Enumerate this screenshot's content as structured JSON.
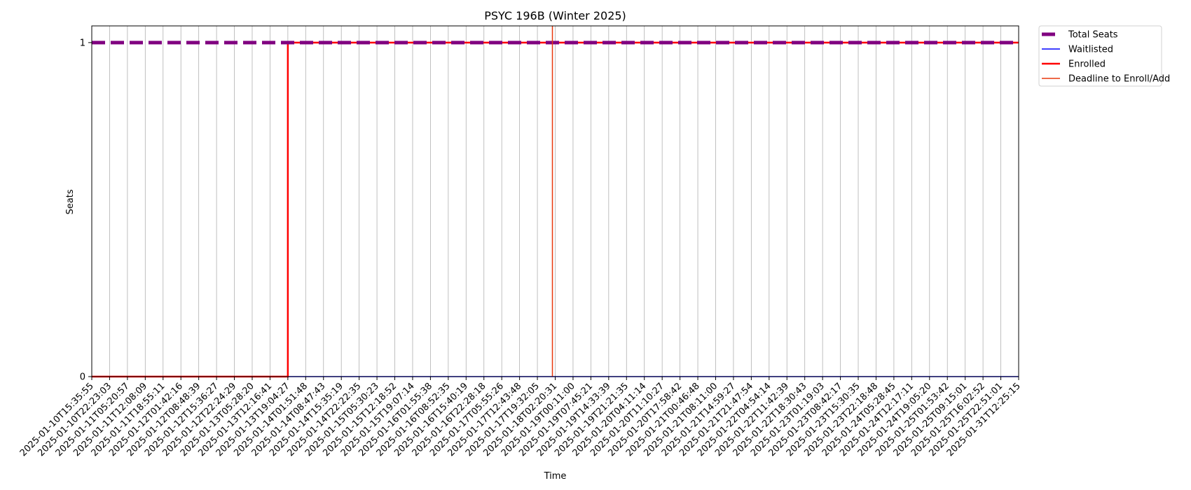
{
  "chart_data": {
    "type": "line",
    "title": "PSYC 196B (Winter 2025)",
    "xlabel": "Time",
    "ylabel": "Seats",
    "ylim": [
      0,
      1.05
    ],
    "yticks": [
      0,
      1
    ],
    "grid": "x",
    "legend_position": "outside-top-right",
    "x": [
      "2025-01-10T15:35:55",
      "2025-01-10T22:23:03",
      "2025-01-11T05:20:57",
      "2025-01-11T12:08:09",
      "2025-01-11T18:55:11",
      "2025-01-12T01:42:16",
      "2025-01-12T08:48:39",
      "2025-01-12T15:36:27",
      "2025-01-12T22:24:29",
      "2025-01-13T05:28:20",
      "2025-01-13T12:16:41",
      "2025-01-13T19:04:27",
      "2025-01-14T01:51:48",
      "2025-01-14T08:47:43",
      "2025-01-14T15:35:19",
      "2025-01-14T22:22:35",
      "2025-01-15T05:30:23",
      "2025-01-15T12:18:52",
      "2025-01-15T19:07:14",
      "2025-01-16T01:55:38",
      "2025-01-16T08:52:35",
      "2025-01-16T15:40:19",
      "2025-01-16T22:28:18",
      "2025-01-17T05:55:26",
      "2025-01-17T12:43:48",
      "2025-01-17T19:32:05",
      "2025-01-18T02:20:31",
      "2025-01-19T00:11:00",
      "2025-01-19T07:45:21",
      "2025-01-19T14:33:39",
      "2025-01-19T21:21:35",
      "2025-01-20T04:11:14",
      "2025-01-20T11:10:27",
      "2025-01-20T17:58:42",
      "2025-01-21T00:46:48",
      "2025-01-21T08:11:00",
      "2025-01-21T14:59:27",
      "2025-01-21T21:47:54",
      "2025-01-22T04:54:14",
      "2025-01-22T11:42:39",
      "2025-01-22T18:30:43",
      "2025-01-23T01:19:03",
      "2025-01-23T08:42:17",
      "2025-01-23T15:30:35",
      "2025-01-23T22:18:48",
      "2025-01-24T05:28:45",
      "2025-01-24T12:17:11",
      "2025-01-24T19:05:20",
      "2025-01-25T01:53:42",
      "2025-01-25T09:15:01",
      "2025-01-25T16:02:52",
      "2025-01-25T22:51:01",
      "2025-01-31T12:25:15"
    ],
    "series": [
      {
        "name": "Total Seats",
        "color": "#800080",
        "style": "dashed",
        "values": [
          1,
          1,
          1,
          1,
          1,
          1,
          1,
          1,
          1,
          1,
          1,
          1,
          1,
          1,
          1,
          1,
          1,
          1,
          1,
          1,
          1,
          1,
          1,
          1,
          1,
          1,
          1,
          1,
          1,
          1,
          1,
          1,
          1,
          1,
          1,
          1,
          1,
          1,
          1,
          1,
          1,
          1,
          1,
          1,
          1,
          1,
          1,
          1,
          1,
          1,
          1,
          1,
          1
        ]
      },
      {
        "name": "Waitlisted",
        "color": "#0000ff",
        "style": "solid",
        "values": [
          0,
          0,
          0,
          0,
          0,
          0,
          0,
          0,
          0,
          0,
          0,
          0,
          0,
          0,
          0,
          0,
          0,
          0,
          0,
          0,
          0,
          0,
          0,
          0,
          0,
          0,
          0,
          0,
          0,
          0,
          0,
          0,
          0,
          0,
          0,
          0,
          0,
          0,
          0,
          0,
          0,
          0,
          0,
          0,
          0,
          0,
          0,
          0,
          0,
          0,
          0,
          0,
          0
        ]
      },
      {
        "name": "Enrolled",
        "color": "#ff0000",
        "style": "step",
        "values": [
          0,
          0,
          0,
          0,
          0,
          0,
          0,
          0,
          0,
          0,
          0,
          1,
          1,
          1,
          1,
          1,
          1,
          1,
          1,
          1,
          1,
          1,
          1,
          1,
          1,
          1,
          1,
          1,
          1,
          1,
          1,
          1,
          1,
          1,
          1,
          1,
          1,
          1,
          1,
          1,
          1,
          1,
          1,
          1,
          1,
          1,
          1,
          1,
          1,
          1,
          1,
          1,
          1
        ]
      }
    ],
    "annotations": [
      {
        "name": "Deadline to Enroll/Add",
        "color": "#e8380d",
        "type": "vertical-line",
        "x_index": 26
      }
    ]
  }
}
